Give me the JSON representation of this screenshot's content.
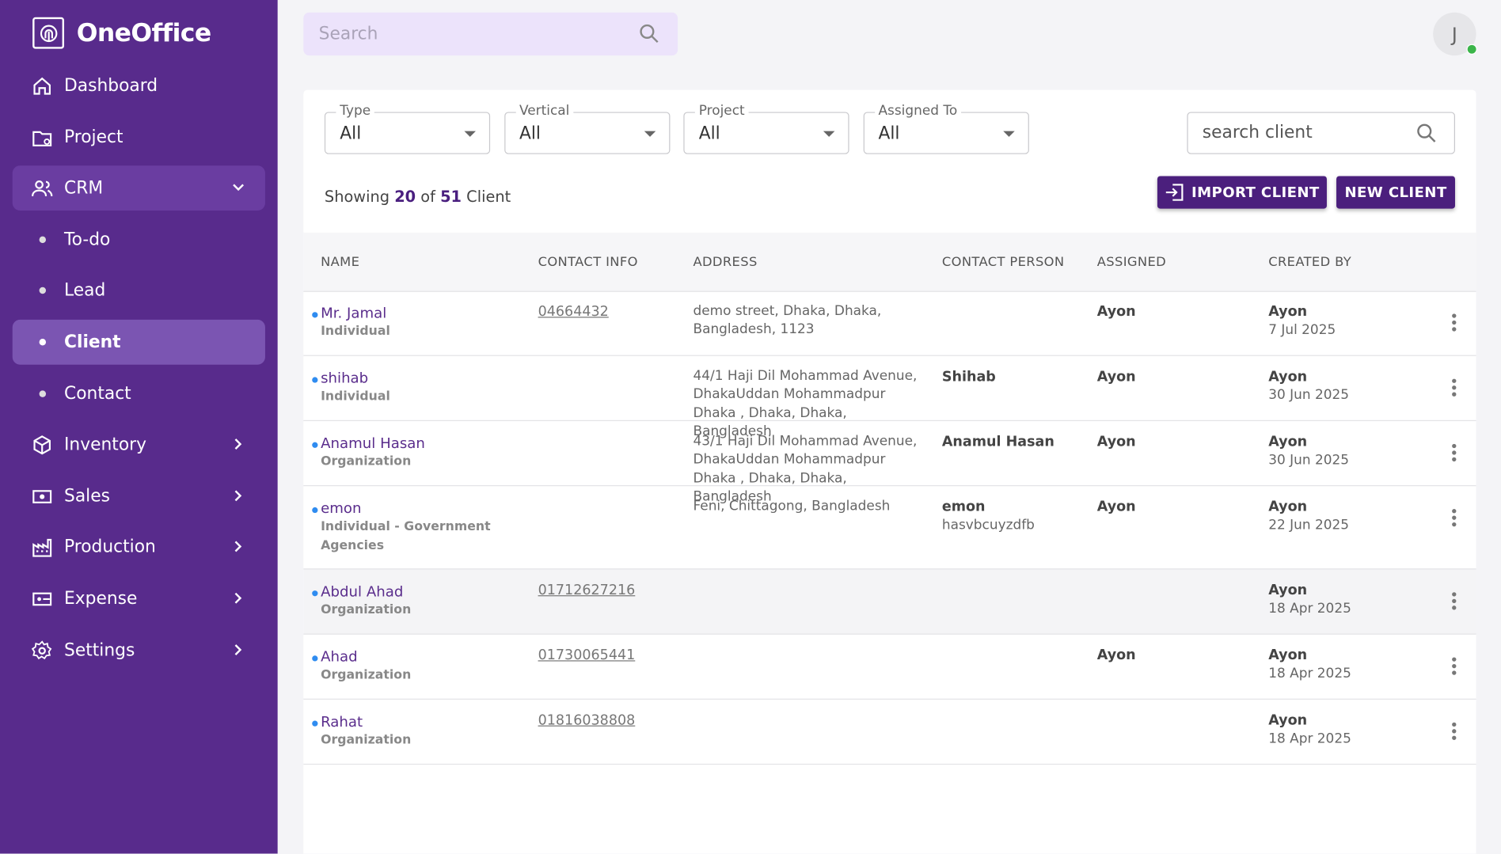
{
  "sidebar": {
    "brand": "OneOffice",
    "nav": [
      {
        "label": "Dashboard",
        "icon": "home"
      },
      {
        "label": "Project",
        "icon": "folder"
      },
      {
        "label": "CRM",
        "icon": "people",
        "expanded": true,
        "children": [
          {
            "label": "To-do"
          },
          {
            "label": "Lead"
          },
          {
            "label": "Client",
            "active": true
          },
          {
            "label": "Contact"
          }
        ]
      },
      {
        "label": "Inventory",
        "icon": "box",
        "arrow": true
      },
      {
        "label": "Sales",
        "icon": "sales",
        "arrow": true
      },
      {
        "label": "Production",
        "icon": "factory",
        "arrow": true
      },
      {
        "label": "Expense",
        "icon": "expense",
        "arrow": true
      },
      {
        "label": "Settings",
        "icon": "gear",
        "arrow": true
      }
    ]
  },
  "topbar": {
    "search_placeholder": "Search",
    "avatar": "J"
  },
  "filters": [
    {
      "label": "Type",
      "value": "All"
    },
    {
      "label": "Vertical",
      "value": "All"
    },
    {
      "label": "Project",
      "value": "All"
    },
    {
      "label": "Assigned To",
      "value": "All"
    }
  ],
  "client_search_placeholder": "search client",
  "summary": {
    "prefix": "Showing",
    "shown": "20",
    "of": "of",
    "total": "51",
    "suffix": "Client"
  },
  "buttons": {
    "import": "IMPORT CLIENT",
    "new": "NEW CLIENT"
  },
  "table": {
    "headers": [
      "NAME",
      "CONTACT INFO",
      "ADDRESS",
      "CONTACT PERSON",
      "ASSIGNED",
      "CREATED BY"
    ],
    "rows": [
      {
        "name": "Mr. Jamal",
        "type": "Individual",
        "contact": "04664432",
        "address": [
          "demo street, Dhaka, Dhaka,",
          "Bangladesh, 1123"
        ],
        "assigned": "Ayon",
        "created_by": "Ayon",
        "created_date": "7 Jul 2025"
      },
      {
        "name": "shihab",
        "type": "Individual",
        "address": [
          "44/1 Haji Dil Mohammad Avenue,",
          "DhakaUddan Mohammadpur",
          "Dhaka , Dhaka, Dhaka,",
          "Bangladesh"
        ],
        "contact_person": "Shihab",
        "assigned": "Ayon",
        "created_by": "Ayon",
        "created_date": "30 Jun 2025"
      },
      {
        "name": "Anamul Hasan",
        "type": "Organization",
        "address": [
          "43/1 Haji Dil Mohammad Avenue,",
          "DhakaUddan Mohammadpur",
          "Dhaka , Dhaka, Dhaka,",
          "Bangladesh"
        ],
        "contact_person": "Anamul Hasan",
        "assigned": "Ayon",
        "created_by": "Ayon",
        "created_date": "30 Jun 2025"
      },
      {
        "name": "emon",
        "type": "Individual - Government Agencies",
        "address": [
          "Feni, Chittagong, Bangladesh"
        ],
        "contact_person": "emon",
        "contact_person_sub": "hasvbcuyzdfb",
        "assigned": "Ayon",
        "created_by": "Ayon",
        "created_date": "22 Jun 2025"
      },
      {
        "name": "Abdul Ahad",
        "type": "Organization",
        "contact": "01712627216",
        "created_by": "Ayon",
        "created_date": "18 Apr 2025",
        "highlighted": true
      },
      {
        "name": "Ahad",
        "type": "Organization",
        "contact": "01730065441",
        "assigned": "Ayon",
        "created_by": "Ayon",
        "created_date": "18 Apr 2025"
      },
      {
        "name": "Rahat",
        "type": "Organization",
        "contact": "01816038808",
        "created_by": "Ayon",
        "created_date": "18 Apr 2025"
      }
    ]
  }
}
